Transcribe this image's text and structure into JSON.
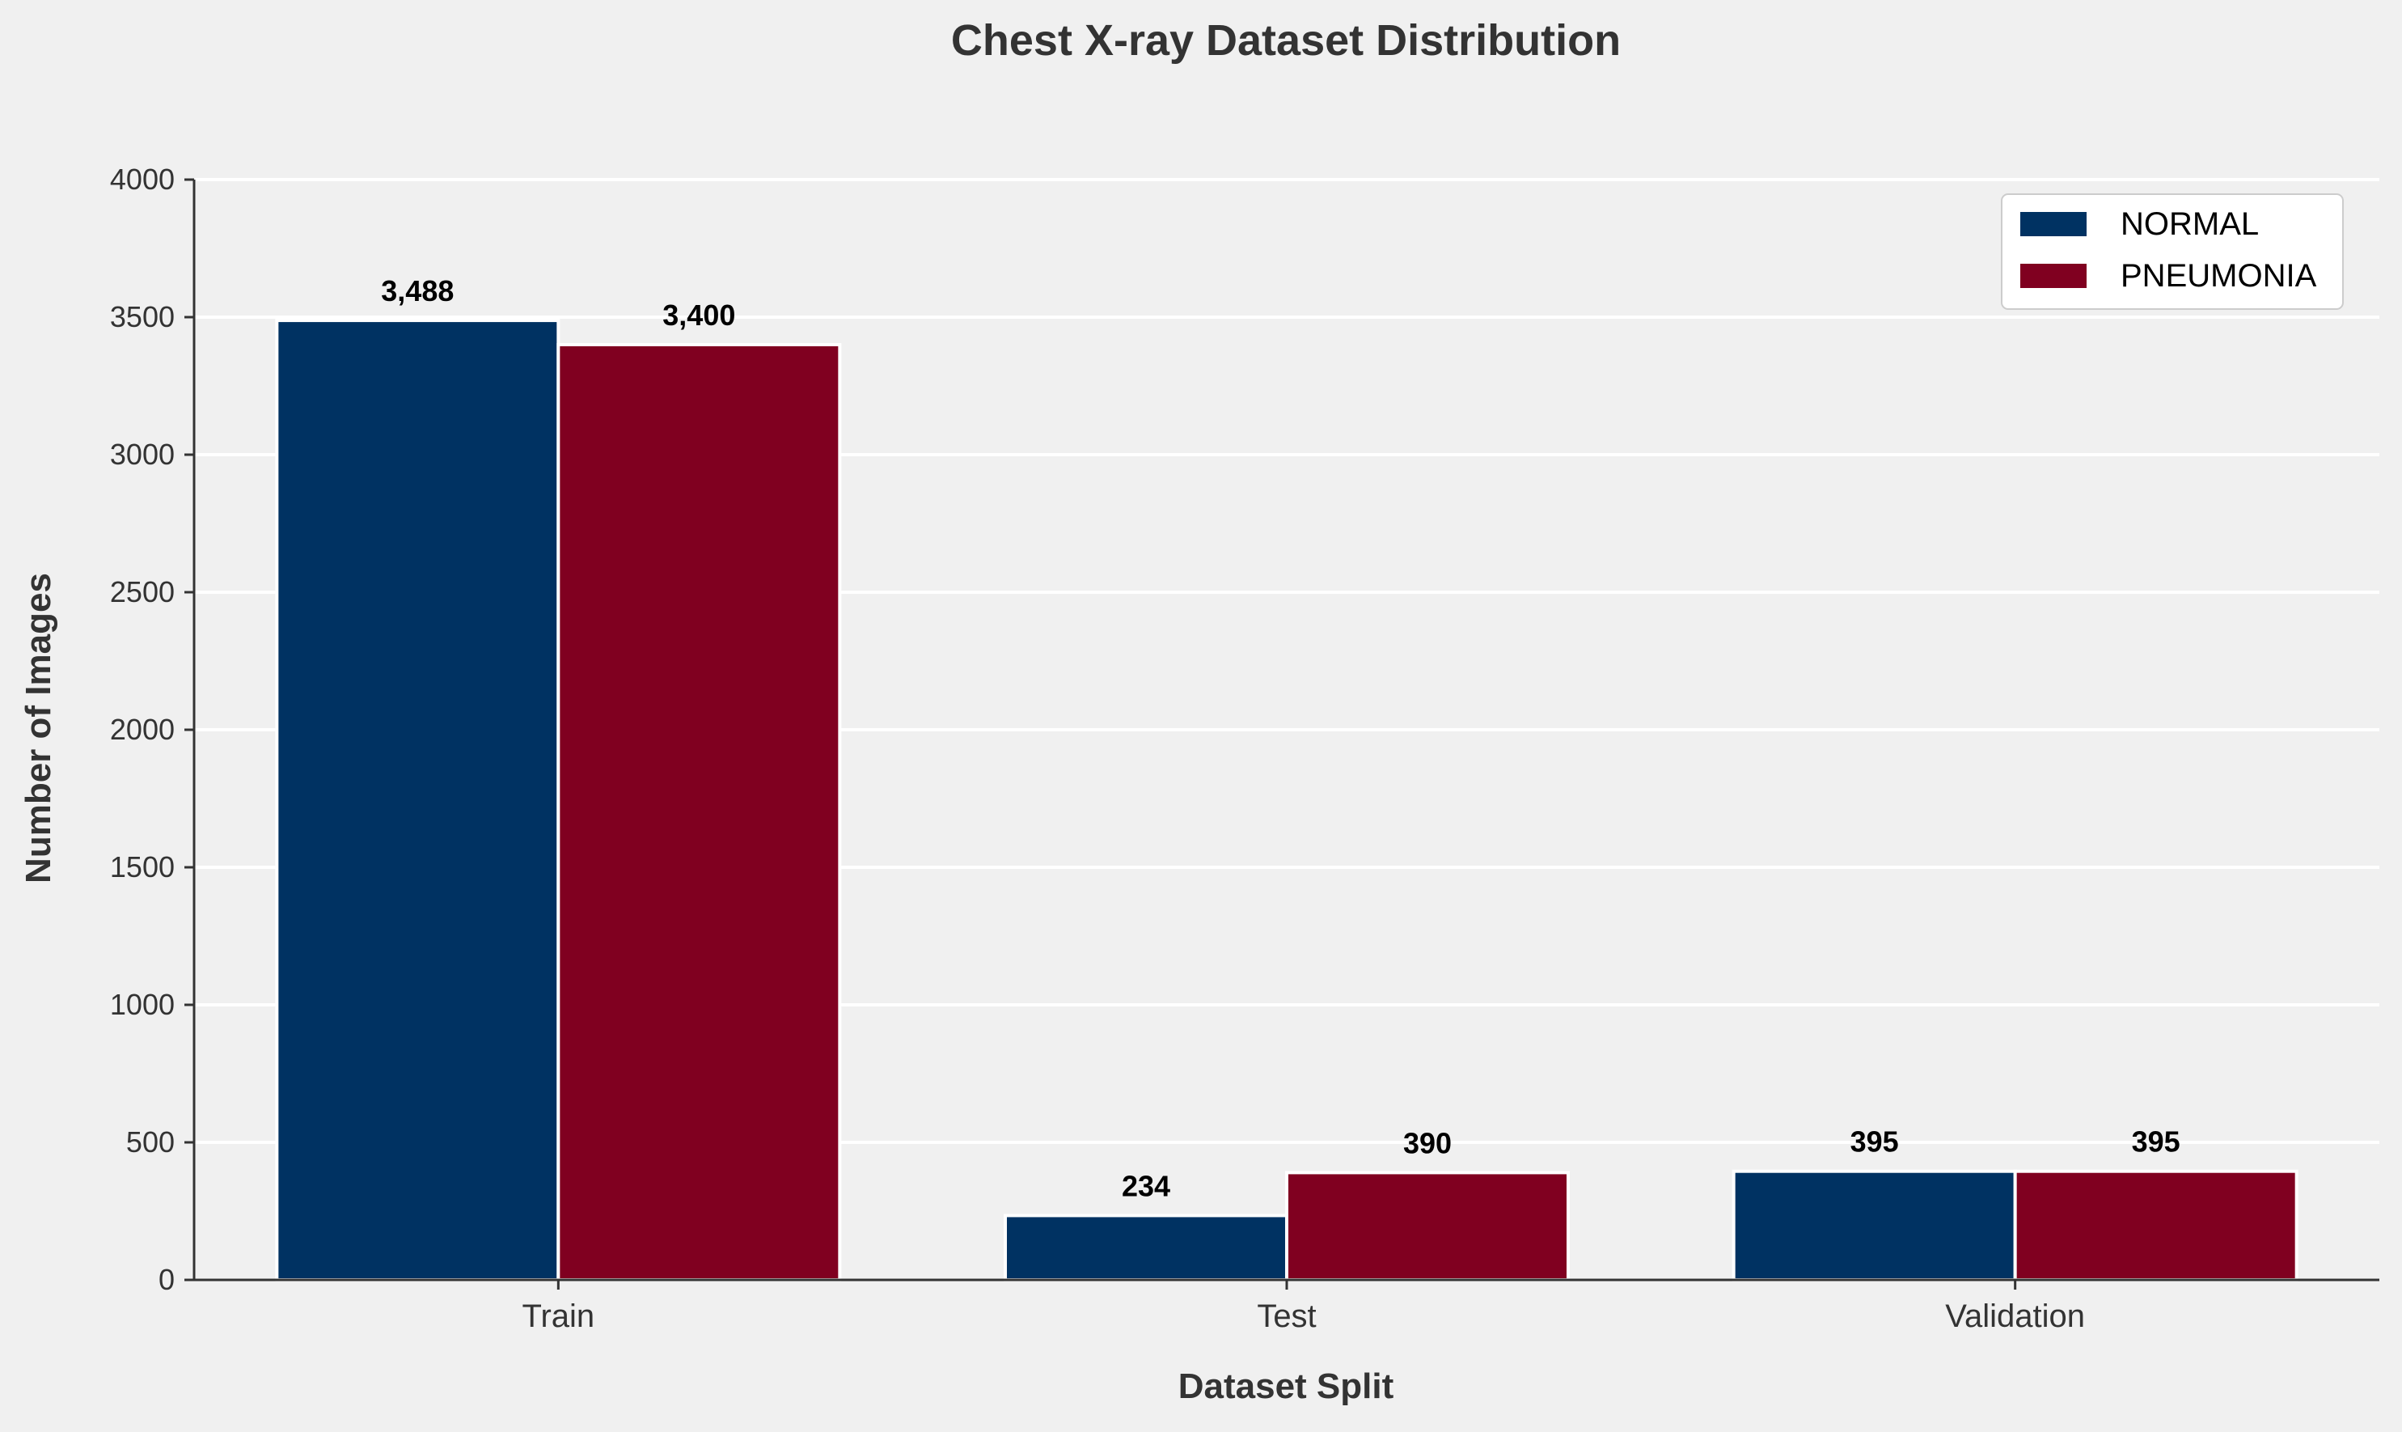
{
  "chart_data": {
    "type": "bar",
    "title": "Chest X-ray Dataset Distribution",
    "xlabel": "Dataset Split",
    "ylabel": "Number of Images",
    "categories": [
      "Train",
      "Test",
      "Validation"
    ],
    "series": [
      {
        "name": "NORMAL",
        "values": [
          3488,
          234,
          395
        ],
        "labels": [
          "3,488",
          "234",
          "395"
        ],
        "color": "#003262"
      },
      {
        "name": "PNEUMONIA",
        "values": [
          3400,
          390,
          395
        ],
        "labels": [
          "3,400",
          "390",
          "395"
        ],
        "color": "#800020"
      }
    ],
    "ylim": [
      0,
      4000
    ],
    "yticks": [
      0,
      500,
      1000,
      1500,
      2000,
      2500,
      3000,
      3500,
      4000
    ],
    "ytick_labels": [
      "0",
      "500",
      "1000",
      "1500",
      "2000",
      "2500",
      "3000",
      "3500",
      "4000"
    ],
    "grid": "horizontal",
    "legend_position": "top-right",
    "colors": {
      "background": "#f0f0f0",
      "grid": "#ffffff",
      "axis": "#333333",
      "bar_edge": "#ffffff"
    }
  }
}
